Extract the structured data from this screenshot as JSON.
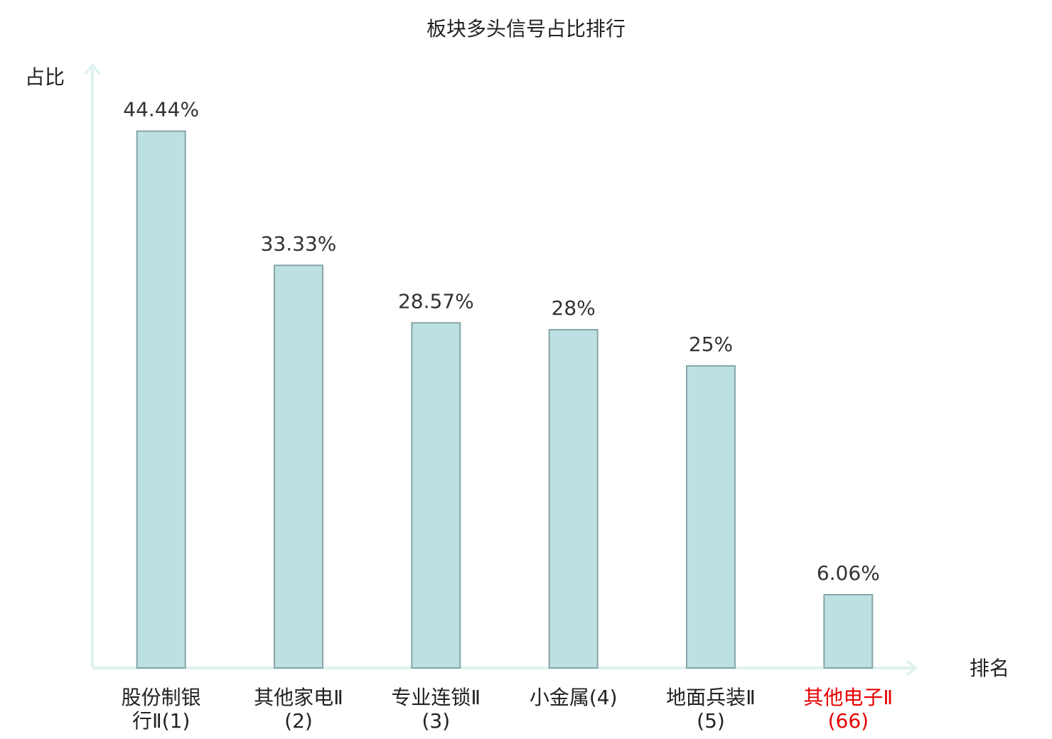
{
  "chart_data": {
    "type": "bar",
    "title": "板块多头信号占比排行",
    "y_label": "占比",
    "x_label": "排名",
    "categories": [
      "股份制银行Ⅱ(1)",
      "其他家电Ⅱ(2)",
      "专业连锁Ⅱ(3)",
      "小金属(4)",
      "地面兵装Ⅱ(5)",
      "其他电子Ⅱ(66)"
    ],
    "values": [
      44.44,
      33.33,
      28.57,
      28,
      25,
      6.06
    ],
    "value_labels": [
      "44.44%",
      "33.33%",
      "28.57%",
      "28%",
      "25%",
      "6.06%"
    ],
    "label_colors": [
      "#222222",
      "#222222",
      "#222222",
      "#222222",
      "#222222",
      "#e60000"
    ],
    "color": "#bde0e3",
    "ylim": [
      0,
      50
    ]
  }
}
